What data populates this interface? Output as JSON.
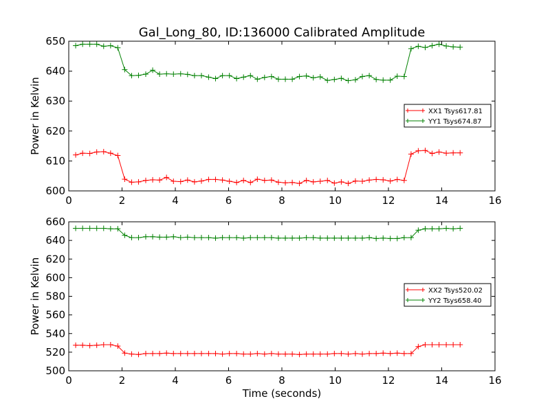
{
  "title": "Gal_Long_80, ID:136000 Calibrated Amplitude",
  "xlabel": "Time (seconds)",
  "chart_data": [
    {
      "type": "line",
      "ylabel": "Power in Kelvin",
      "xlim": [
        0,
        16
      ],
      "ylim": [
        600,
        650
      ],
      "xticks": [
        "0",
        "2",
        "4",
        "6",
        "8",
        "10",
        "12",
        "14",
        "16"
      ],
      "yticks": [
        "600",
        "610",
        "620",
        "630",
        "640",
        "650"
      ],
      "grid": false,
      "legend_position": "center-right",
      "series": [
        {
          "name": "XX1 Tsys617.81",
          "color": "#ff0000",
          "marker": "plus",
          "x": [
            0.26,
            0.52,
            0.79,
            1.05,
            1.31,
            1.57,
            1.84,
            2.1,
            2.36,
            2.62,
            2.89,
            3.15,
            3.41,
            3.67,
            3.93,
            4.2,
            4.46,
            4.72,
            4.98,
            5.25,
            5.51,
            5.77,
            6.03,
            6.3,
            6.56,
            6.82,
            7.08,
            7.35,
            7.61,
            7.87,
            8.13,
            8.39,
            8.66,
            8.92,
            9.18,
            9.44,
            9.71,
            9.97,
            10.23,
            10.49,
            10.76,
            11.02,
            11.28,
            11.54,
            11.8,
            12.07,
            12.33,
            12.59,
            12.85,
            13.12,
            13.38,
            13.64,
            13.9,
            14.17,
            14.43,
            14.69
          ],
          "y": [
            612.0,
            612.6,
            612.5,
            613.0,
            613.1,
            612.6,
            611.8,
            603.9,
            602.9,
            603.0,
            603.5,
            603.7,
            603.6,
            604.5,
            603.2,
            603.1,
            603.6,
            603.0,
            603.3,
            603.8,
            603.8,
            603.6,
            603.2,
            602.8,
            603.5,
            602.8,
            603.9,
            603.5,
            603.6,
            602.9,
            602.7,
            602.8,
            602.5,
            603.5,
            603.0,
            603.2,
            603.5,
            602.6,
            603.0,
            602.5,
            603.3,
            603.2,
            603.6,
            603.8,
            603.7,
            603.3,
            603.8,
            603.5,
            612.3,
            613.4,
            613.5,
            612.5,
            613.0,
            612.6,
            612.7,
            612.7
          ]
        },
        {
          "name": "YY1 Tsys674.87",
          "color": "#008000",
          "marker": "plus",
          "x": [
            0.26,
            0.52,
            0.79,
            1.05,
            1.31,
            1.57,
            1.84,
            2.1,
            2.36,
            2.62,
            2.89,
            3.15,
            3.41,
            3.67,
            3.93,
            4.2,
            4.46,
            4.72,
            4.98,
            5.25,
            5.51,
            5.77,
            6.03,
            6.3,
            6.56,
            6.82,
            7.08,
            7.35,
            7.61,
            7.87,
            8.13,
            8.39,
            8.66,
            8.92,
            9.18,
            9.44,
            9.71,
            9.97,
            10.23,
            10.49,
            10.76,
            11.02,
            11.28,
            11.54,
            11.8,
            12.07,
            12.33,
            12.59,
            12.85,
            13.12,
            13.38,
            13.64,
            13.9,
            14.17,
            14.43,
            14.69
          ],
          "y": [
            648.5,
            649.0,
            649.0,
            649.0,
            648.3,
            648.5,
            647.8,
            640.5,
            638.5,
            638.6,
            639.0,
            640.3,
            639.0,
            639.1,
            639.0,
            639.1,
            638.9,
            638.5,
            638.5,
            638.0,
            637.5,
            638.5,
            638.5,
            637.5,
            638.0,
            638.5,
            637.3,
            637.9,
            638.2,
            637.3,
            637.3,
            637.3,
            638.2,
            638.4,
            637.8,
            638.1,
            636.9,
            637.2,
            637.6,
            636.8,
            637.1,
            638.2,
            638.5,
            637.2,
            637.0,
            637.0,
            638.3,
            638.2,
            647.5,
            648.3,
            647.9,
            648.5,
            649.0,
            648.4,
            648.1,
            648.0
          ]
        }
      ]
    },
    {
      "type": "line",
      "ylabel": "Power in Kelvin",
      "xlim": [
        0,
        16
      ],
      "ylim": [
        500,
        660
      ],
      "xticks": [
        "0",
        "2",
        "4",
        "6",
        "8",
        "10",
        "12",
        "14",
        "16"
      ],
      "yticks": [
        "500",
        "520",
        "540",
        "560",
        "580",
        "600",
        "620",
        "640",
        "660"
      ],
      "grid": false,
      "legend_position": "center-right",
      "series": [
        {
          "name": "XX2 Tsys520.02",
          "color": "#ff0000",
          "marker": "plus",
          "x": [
            0.26,
            0.52,
            0.79,
            1.05,
            1.31,
            1.57,
            1.84,
            2.1,
            2.36,
            2.62,
            2.89,
            3.15,
            3.41,
            3.67,
            3.93,
            4.2,
            4.46,
            4.72,
            4.98,
            5.25,
            5.51,
            5.77,
            6.03,
            6.3,
            6.56,
            6.82,
            7.08,
            7.35,
            7.61,
            7.87,
            8.13,
            8.39,
            8.66,
            8.92,
            9.18,
            9.44,
            9.71,
            9.97,
            10.23,
            10.49,
            10.76,
            11.02,
            11.28,
            11.54,
            11.8,
            12.07,
            12.33,
            12.59,
            12.85,
            13.12,
            13.38,
            13.64,
            13.9,
            14.17,
            14.43,
            14.69
          ],
          "y": [
            527.5,
            527.5,
            527.0,
            527.5,
            528.0,
            528.0,
            526.5,
            519.0,
            518.0,
            517.5,
            518.5,
            518.5,
            518.5,
            519.0,
            518.5,
            518.5,
            518.5,
            518.5,
            518.5,
            518.5,
            518.5,
            518.0,
            518.5,
            518.5,
            518.0,
            518.0,
            518.5,
            518.0,
            518.5,
            518.0,
            518.0,
            518.0,
            517.5,
            518.0,
            518.0,
            518.0,
            518.0,
            518.5,
            518.5,
            518.0,
            518.5,
            518.0,
            518.5,
            518.5,
            519.0,
            518.5,
            519.0,
            518.5,
            518.5,
            526.0,
            528.0,
            528.0,
            528.0,
            528.0,
            528.0,
            528.0
          ]
        },
        {
          "name": "YY2 Tsys658.40",
          "color": "#008000",
          "marker": "plus",
          "x": [
            0.26,
            0.52,
            0.79,
            1.05,
            1.31,
            1.57,
            1.84,
            2.1,
            2.36,
            2.62,
            2.89,
            3.15,
            3.41,
            3.67,
            3.93,
            4.2,
            4.46,
            4.72,
            4.98,
            5.25,
            5.51,
            5.77,
            6.03,
            6.3,
            6.56,
            6.82,
            7.08,
            7.35,
            7.61,
            7.87,
            8.13,
            8.39,
            8.66,
            8.92,
            9.18,
            9.44,
            9.71,
            9.97,
            10.23,
            10.49,
            10.76,
            11.02,
            11.28,
            11.54,
            11.8,
            12.07,
            12.33,
            12.59,
            12.85,
            13.12,
            13.38,
            13.64,
            13.9,
            14.17,
            14.43,
            14.69
          ],
          "y": [
            653.0,
            653.0,
            653.0,
            653.0,
            653.0,
            652.5,
            652.5,
            645.5,
            643.0,
            643.0,
            644.0,
            644.0,
            643.5,
            643.5,
            644.0,
            643.0,
            643.5,
            643.0,
            643.0,
            643.0,
            642.5,
            643.0,
            643.0,
            643.0,
            642.5,
            643.0,
            643.0,
            643.0,
            643.0,
            642.5,
            642.5,
            642.5,
            642.5,
            643.0,
            643.0,
            642.5,
            642.5,
            642.5,
            642.5,
            642.5,
            642.5,
            642.5,
            643.0,
            642.0,
            642.5,
            642.0,
            642.0,
            643.0,
            643.0,
            651.0,
            652.5,
            652.5,
            652.5,
            653.0,
            652.5,
            653.0
          ]
        }
      ]
    }
  ]
}
